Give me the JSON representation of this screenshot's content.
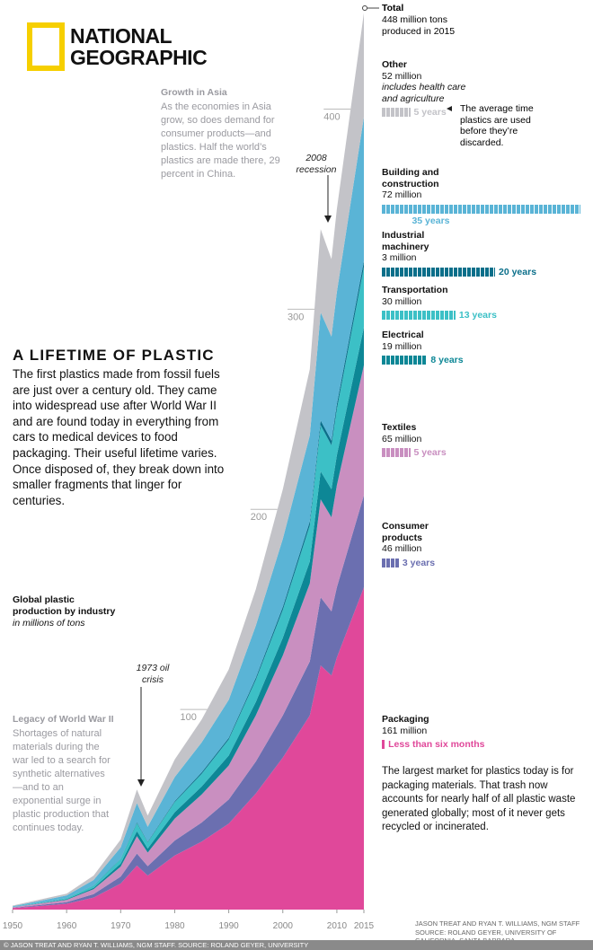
{
  "logo": [
    "NATIONAL",
    "GEOGRAPHIC"
  ],
  "chart_data": {
    "type": "stacked-area",
    "title": "A LIFETIME OF PLASTIC",
    "subtitle": "The first plastics made from fossil fuels are just over a century old. They came into widespread use after World War II and are found today in everything from cars to medical devices to food packaging. Their useful lifetime varies. Once disposed of, they break down into smaller fragments that linger for centuries.",
    "y_label": "Global plastic production by industry",
    "y_unit": "in millions of tons",
    "x": [
      1950,
      1955,
      1960,
      1965,
      1970,
      1973,
      1975,
      1980,
      1985,
      1990,
      1995,
      2000,
      2005,
      2007,
      2009,
      2010,
      2015
    ],
    "xlim": [
      1950,
      2015
    ],
    "xticks": [
      1950,
      1960,
      1970,
      1980,
      1990,
      2000,
      2010,
      2015
    ],
    "ylim": [
      0,
      450
    ],
    "yticks": [
      100,
      200,
      300,
      400
    ],
    "series": [
      {
        "name": "Packaging",
        "color": "#e0489a",
        "values": [
          0.7,
          1.8,
          2.9,
          6,
          13,
          22,
          17,
          27,
          34,
          43,
          58,
          76,
          97,
          122,
          117,
          126,
          161
        ],
        "value_labels": [
          null,
          null,
          null,
          null,
          null,
          null,
          null,
          null,
          null,
          null,
          null,
          null,
          null,
          null,
          null,
          null,
          "161 million"
        ],
        "lifetime": {
          "value": 0.5,
          "label": "Less than six months"
        }
      },
      {
        "name": "Consumer products",
        "color": "#6b6fb0",
        "values": [
          0.2,
          0.5,
          0.8,
          1.7,
          3.5,
          6,
          4.7,
          7.5,
          9.5,
          12,
          16,
          21,
          27,
          34,
          32,
          35,
          46
        ],
        "value_labels": [
          null,
          null,
          null,
          null,
          null,
          null,
          null,
          null,
          null,
          null,
          null,
          null,
          null,
          null,
          null,
          null,
          "46 million"
        ],
        "lifetime": {
          "value": 3,
          "label": "3 years"
        }
      },
      {
        "name": "Textiles",
        "color": "#c98fc0",
        "values": [
          0.3,
          0.7,
          1.2,
          2.5,
          5,
          8.7,
          6.8,
          11,
          14,
          17,
          23,
          30,
          39,
          49,
          47,
          51,
          65
        ],
        "value_labels": [
          null,
          null,
          null,
          null,
          null,
          null,
          null,
          null,
          null,
          null,
          null,
          null,
          null,
          null,
          null,
          null,
          "65 million"
        ],
        "lifetime": {
          "value": 5,
          "label": "5 years"
        }
      },
      {
        "name": "Electrical",
        "color": "#0d8796",
        "values": [
          0.1,
          0.2,
          0.3,
          0.7,
          1.5,
          2.5,
          2,
          3.2,
          4,
          5,
          6.7,
          8.8,
          11,
          14,
          14,
          15,
          19
        ],
        "value_labels": [
          null,
          null,
          null,
          null,
          null,
          null,
          null,
          null,
          null,
          null,
          null,
          null,
          null,
          null,
          null,
          null,
          "19 million"
        ],
        "lifetime": {
          "value": 8,
          "label": "8 years"
        }
      },
      {
        "name": "Transportation",
        "color": "#3cc0c6",
        "values": [
          0.1,
          0.3,
          0.5,
          1.1,
          2.3,
          4,
          3.1,
          5,
          6.4,
          8,
          11,
          14,
          18,
          23,
          22,
          23,
          30
        ],
        "value_labels": [
          null,
          null,
          null,
          null,
          null,
          null,
          null,
          null,
          null,
          null,
          null,
          null,
          null,
          null,
          null,
          null,
          "30 million"
        ],
        "lifetime": {
          "value": 13,
          "label": "13 years"
        }
      },
      {
        "name": "Industrial machinery",
        "color": "#0b6f8a",
        "values": [
          0,
          0,
          0.1,
          0.1,
          0.2,
          0.4,
          0.3,
          0.5,
          0.7,
          0.8,
          1.1,
          1.5,
          1.9,
          2.4,
          2.3,
          2.5,
          3
        ],
        "value_labels": [
          null,
          null,
          null,
          null,
          null,
          null,
          null,
          null,
          null,
          null,
          null,
          null,
          null,
          null,
          null,
          null,
          "3 million"
        ],
        "lifetime": {
          "value": 20,
          "label": "20 years"
        }
      },
      {
        "name": "Building and construction",
        "color": "#5ab4d6",
        "values": [
          0.3,
          0.8,
          1.3,
          2.7,
          5.6,
          9.6,
          7.5,
          12,
          15,
          19,
          26,
          34,
          43,
          54,
          52,
          56,
          72
        ],
        "value_labels": [
          null,
          null,
          null,
          null,
          null,
          null,
          null,
          null,
          null,
          null,
          null,
          null,
          null,
          null,
          null,
          null,
          "72 million"
        ],
        "lifetime": {
          "value": 35,
          "label": "35 years"
        }
      },
      {
        "name": "Other",
        "color": "#c3c3c8",
        "values": [
          0.3,
          0.7,
          0.9,
          2.2,
          3.9,
          6.8,
          5.6,
          8.8,
          11.4,
          15.2,
          18.2,
          24.7,
          33.1,
          41.6,
          38.7,
          41.5,
          52
        ],
        "value_labels": [
          null,
          null,
          null,
          null,
          null,
          null,
          null,
          null,
          null,
          null,
          null,
          null,
          null,
          null,
          null,
          null,
          "52 million"
        ],
        "note": "includes health care and agriculture",
        "lifetime": {
          "value": 5,
          "label": "5 years"
        }
      }
    ],
    "annotations": {
      "total_title": "Total",
      "total_text": "448 million tons produced in 2015",
      "lifetime_note": "The average time plastics are used before they’re discarded.",
      "asia_title": "Growth in Asia",
      "asia_text": "As the economies in Asia grow, so does demand for consumer products—and plastics. Half the world’s plastics are made there, 29 percent in China.",
      "recession": "2008 recession",
      "oil_crisis": "1973 oil crisis",
      "wwii_title": "Legacy of World War II",
      "wwii_text": "Shortages of natural materials during the war led to a search for synthetic alternatives—and to an exponential surge in plastic production that continues today.",
      "packaging_note": "The largest market for plastics today is for packaging materials. That trash now accounts for nearly half of all plastic waste generated globally; most of it never gets recycled or incinerated."
    }
  },
  "credit_right": "JASON TREAT AND RYAN T. WILLIAMS, NGM STAFF SOURCE: ROLAND GEYER, UNIVERSITY OF CALIFORNIA, SANTA BARBARA",
  "credit_bottom": "© JASON TREAT AND RYAN T. WILLIAMS, NGM STAFF. SOURCE: ROLAND GEYER, UNIVERSITY"
}
